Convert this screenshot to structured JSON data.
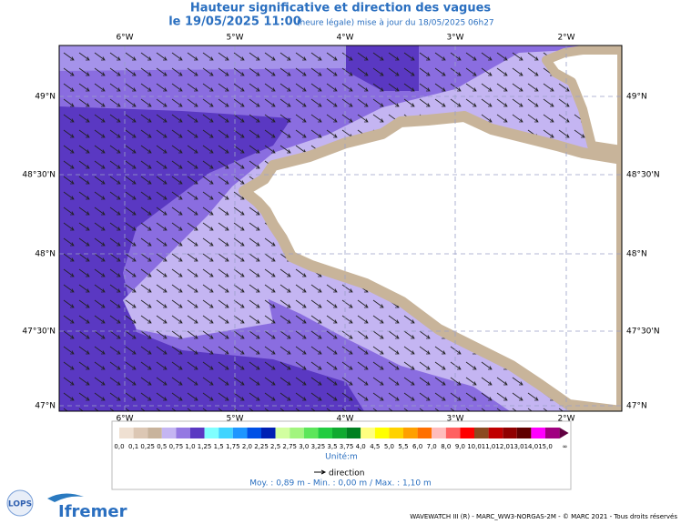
{
  "header": {
    "title": "Hauteur significative et direction des vagues",
    "date": "le 19/05/2025 11:00",
    "note": "(heure légale) mise à jour du 18/05/2025 06h27"
  },
  "map": {
    "lon_labels": [
      "6°W",
      "5°W",
      "4°W",
      "3°W",
      "2°W"
    ],
    "lat_labels": [
      "49°N",
      "48°30'N",
      "48°N",
      "47°30'N",
      "47°N"
    ]
  },
  "colorbar": {
    "labels": [
      "0,0",
      "0,1",
      "0,25",
      "0,5",
      "0,75",
      "1,0",
      "1,25",
      "1,5",
      "1,75",
      "2,0",
      "2,25",
      "2,5",
      "2,75",
      "3,0",
      "3,25",
      "3,5",
      "3,75",
      "4,0",
      "4,5",
      "5,0",
      "5,5",
      "6,0",
      "7,0",
      "8,0",
      "9,0",
      "10,0",
      "11,0",
      "12,0",
      "13,0",
      "14,0",
      "15,0",
      "∞"
    ],
    "colors": [
      "#efe0d2",
      "#dcc7b4",
      "#c8b39c",
      "#c4b5f2",
      "#9478e2",
      "#5a38c2",
      "#80ffff",
      "#40d4ff",
      "#1e96ff",
      "#0050e6",
      "#0020b4",
      "#d2ffa0",
      "#a2f57e",
      "#5ce65a",
      "#22cc40",
      "#10aa30",
      "#008020",
      "#ffff80",
      "#ffff00",
      "#ffd200",
      "#ffa000",
      "#ff7000",
      "#ffbcbc",
      "#ff6060",
      "#ff0000",
      "#8b4a20",
      "#c00000",
      "#900000",
      "#600000",
      "#ff00ff",
      "#a00080"
    ],
    "unit": "Unité:m",
    "direction": "direction"
  },
  "stats": "Moy. : 0,89 m   -   Min. : 0,00 m / Max. : 1,10 m",
  "footer": {
    "credits": "WAVEWATCH III (R) - MARC_WW3-NORGAS-2M - © MARC 2021 - Tous droits réservés",
    "logo1": "LOPS",
    "logo2": "Ifremer"
  }
}
